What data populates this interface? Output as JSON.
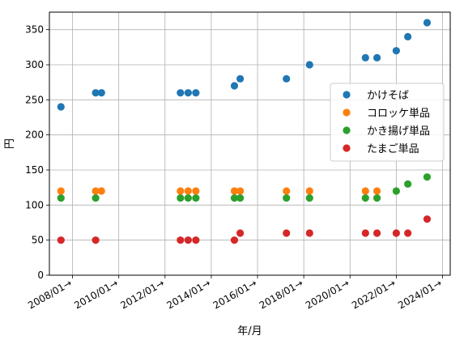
{
  "chart_data": {
    "type": "scatter",
    "xlabel": "年/月",
    "ylabel": "円",
    "xlim": [
      "2007-01",
      "2024-05"
    ],
    "ylim": [
      0,
      375
    ],
    "grid": true,
    "legend_position": "right",
    "x_ticks": [
      {
        "value": "2008-01",
        "label": "2008/01→"
      },
      {
        "value": "2010-01",
        "label": "2010/01→"
      },
      {
        "value": "2012-01",
        "label": "2012/01→"
      },
      {
        "value": "2014-01",
        "label": "2014/01→"
      },
      {
        "value": "2016-01",
        "label": "2016/01→"
      },
      {
        "value": "2018-01",
        "label": "2018/01→"
      },
      {
        "value": "2020-01",
        "label": "2020/01→"
      },
      {
        "value": "2022-01",
        "label": "2022/01→"
      },
      {
        "value": "2024-01",
        "label": "2024/01→"
      }
    ],
    "y_ticks": [
      0,
      50,
      100,
      150,
      200,
      250,
      300,
      350
    ],
    "series": [
      {
        "name": "かけそば",
        "color": "#1f77b4",
        "points": [
          {
            "x": "2007-07",
            "y": 240
          },
          {
            "x": "2009-01",
            "y": 260
          },
          {
            "x": "2009-04",
            "y": 260
          },
          {
            "x": "2012-09",
            "y": 260
          },
          {
            "x": "2013-01",
            "y": 260
          },
          {
            "x": "2013-05",
            "y": 260
          },
          {
            "x": "2015-01",
            "y": 270
          },
          {
            "x": "2015-04",
            "y": 280
          },
          {
            "x": "2017-04",
            "y": 280
          },
          {
            "x": "2018-04",
            "y": 300
          },
          {
            "x": "2020-09",
            "y": 310
          },
          {
            "x": "2021-03",
            "y": 310
          },
          {
            "x": "2022-01",
            "y": 320
          },
          {
            "x": "2022-07",
            "y": 340
          },
          {
            "x": "2023-05",
            "y": 360
          }
        ]
      },
      {
        "name": "コロッケ単品",
        "color": "#ff7f0e",
        "points": [
          {
            "x": "2007-07",
            "y": 120
          },
          {
            "x": "2009-01",
            "y": 120
          },
          {
            "x": "2009-04",
            "y": 120
          },
          {
            "x": "2012-09",
            "y": 120
          },
          {
            "x": "2013-01",
            "y": 120
          },
          {
            "x": "2013-05",
            "y": 120
          },
          {
            "x": "2015-01",
            "y": 120
          },
          {
            "x": "2015-04",
            "y": 120
          },
          {
            "x": "2017-04",
            "y": 120
          },
          {
            "x": "2018-04",
            "y": 120
          },
          {
            "x": "2020-09",
            "y": 120
          },
          {
            "x": "2021-03",
            "y": 120
          }
        ]
      },
      {
        "name": "かき揚げ単品",
        "color": "#2ca02c",
        "points": [
          {
            "x": "2007-07",
            "y": 110
          },
          {
            "x": "2009-01",
            "y": 110
          },
          {
            "x": "2012-09",
            "y": 110
          },
          {
            "x": "2013-01",
            "y": 110
          },
          {
            "x": "2013-05",
            "y": 110
          },
          {
            "x": "2015-01",
            "y": 110
          },
          {
            "x": "2015-04",
            "y": 110
          },
          {
            "x": "2017-04",
            "y": 110
          },
          {
            "x": "2018-04",
            "y": 110
          },
          {
            "x": "2020-09",
            "y": 110
          },
          {
            "x": "2021-03",
            "y": 110
          },
          {
            "x": "2022-01",
            "y": 120
          },
          {
            "x": "2022-07",
            "y": 130
          },
          {
            "x": "2023-05",
            "y": 140
          }
        ]
      },
      {
        "name": "たまご単品",
        "color": "#d62728",
        "points": [
          {
            "x": "2007-07",
            "y": 50
          },
          {
            "x": "2009-01",
            "y": 50
          },
          {
            "x": "2012-09",
            "y": 50
          },
          {
            "x": "2013-01",
            "y": 50
          },
          {
            "x": "2013-05",
            "y": 50
          },
          {
            "x": "2015-01",
            "y": 50
          },
          {
            "x": "2015-04",
            "y": 60
          },
          {
            "x": "2017-04",
            "y": 60
          },
          {
            "x": "2018-04",
            "y": 60
          },
          {
            "x": "2020-09",
            "y": 60
          },
          {
            "x": "2021-03",
            "y": 60
          },
          {
            "x": "2022-01",
            "y": 60
          },
          {
            "x": "2022-07",
            "y": 60
          },
          {
            "x": "2023-05",
            "y": 80
          }
        ]
      }
    ]
  }
}
